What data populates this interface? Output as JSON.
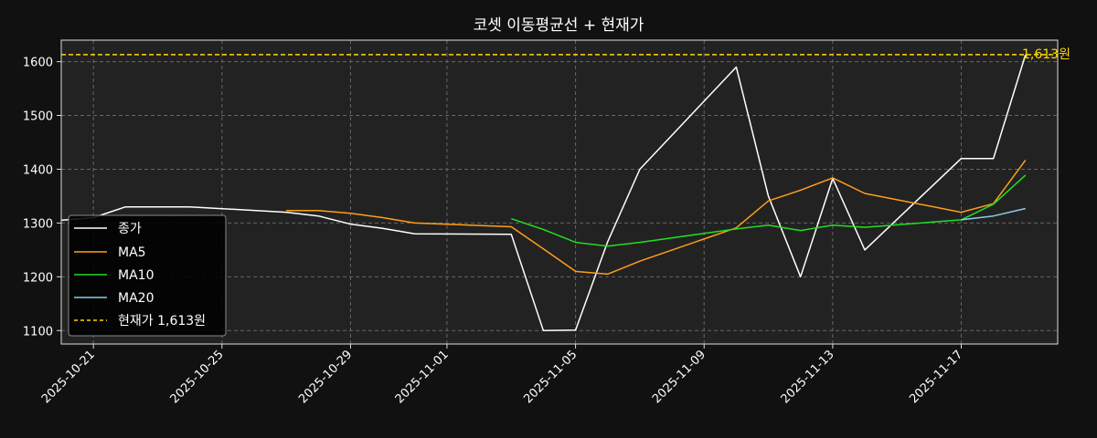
{
  "chart_data": {
    "type": "line",
    "title": "코셋 이동평균선 + 현재가",
    "xlabel": "",
    "ylabel": "",
    "x_tick_labels": [
      "2025-10-21",
      "2025-10-25",
      "2025-10-29",
      "2025-11-01",
      "2025-11-05",
      "2025-11-09",
      "2025-11-13",
      "2025-11-17"
    ],
    "y_ticks": [
      1100,
      1200,
      1300,
      1400,
      1500,
      1600
    ],
    "xlim": [
      "2025-10-20",
      "2025-11-20"
    ],
    "ylim": [
      1075,
      1640
    ],
    "grid": true,
    "legend_position": "lower-left",
    "series": [
      {
        "name": "종가",
        "color": "#ffffff",
        "points": [
          [
            "2025-10-20",
            1305
          ],
          [
            "2025-10-21",
            1310
          ],
          [
            "2025-10-22",
            1330
          ],
          [
            "2025-10-24",
            1330
          ],
          [
            "2025-10-27",
            1320
          ],
          [
            "2025-10-28",
            1313
          ],
          [
            "2025-10-29",
            1298
          ],
          [
            "2025-10-30",
            1290
          ],
          [
            "2025-10-31",
            1280
          ],
          [
            "2025-11-03",
            1279
          ],
          [
            "2025-11-04",
            1100
          ],
          [
            "2025-11-05",
            1101
          ],
          [
            "2025-11-06",
            1265
          ],
          [
            "2025-11-07",
            1400
          ],
          [
            "2025-11-10",
            1590
          ],
          [
            "2025-11-11",
            1350
          ],
          [
            "2025-11-12",
            1200
          ],
          [
            "2025-11-13",
            1383
          ],
          [
            "2025-11-14",
            1250
          ],
          [
            "2025-11-17",
            1420
          ],
          [
            "2025-11-18",
            1420
          ],
          [
            "2025-11-19",
            1613
          ]
        ]
      },
      {
        "name": "MA5",
        "color": "#ff9f1a",
        "points": [
          [
            "2025-10-27",
            1323
          ],
          [
            "2025-10-28",
            1323
          ],
          [
            "2025-10-29",
            1318
          ],
          [
            "2025-10-30",
            1310
          ],
          [
            "2025-10-31",
            1300
          ],
          [
            "2025-11-03",
            1293
          ],
          [
            "2025-11-04",
            1252
          ],
          [
            "2025-11-05",
            1210
          ],
          [
            "2025-11-06",
            1205
          ],
          [
            "2025-11-07",
            1229
          ],
          [
            "2025-11-10",
            1291
          ],
          [
            "2025-11-11",
            1341
          ],
          [
            "2025-11-12",
            1361
          ],
          [
            "2025-11-13",
            1384
          ],
          [
            "2025-11-14",
            1355
          ],
          [
            "2025-11-17",
            1320
          ],
          [
            "2025-11-18",
            1336
          ],
          [
            "2025-11-19",
            1417
          ]
        ]
      },
      {
        "name": "MA10",
        "color": "#22dd22",
        "points": [
          [
            "2025-11-03",
            1308
          ],
          [
            "2025-11-04",
            1288
          ],
          [
            "2025-11-05",
            1264
          ],
          [
            "2025-11-06",
            1257
          ],
          [
            "2025-11-07",
            1264
          ],
          [
            "2025-11-10",
            1289
          ],
          [
            "2025-11-11",
            1296
          ],
          [
            "2025-11-12",
            1286
          ],
          [
            "2025-11-13",
            1296
          ],
          [
            "2025-11-14",
            1292
          ],
          [
            "2025-11-17",
            1306
          ],
          [
            "2025-11-18",
            1335
          ],
          [
            "2025-11-19",
            1389
          ]
        ]
      },
      {
        "name": "MA20",
        "color": "#87ceeb",
        "points": [
          [
            "2025-11-17",
            1306
          ],
          [
            "2025-11-18",
            1313
          ],
          [
            "2025-11-19",
            1327
          ]
        ]
      }
    ],
    "current_price": {
      "value": 1613,
      "label": "1,613원",
      "legend_label": "현재가 1,613원",
      "color": "#ffd700"
    }
  }
}
